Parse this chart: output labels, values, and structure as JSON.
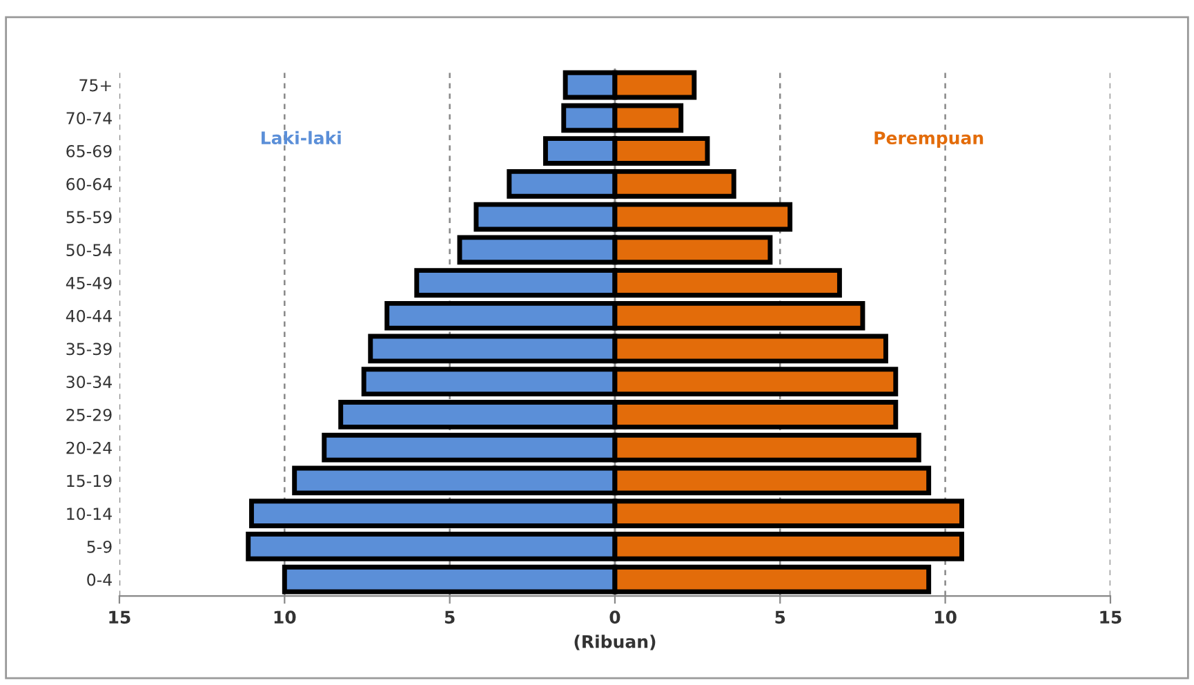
{
  "chart_data": {
    "type": "bar",
    "orientation": "horizontal",
    "xlabel": "(Ribuan)",
    "categories": [
      "75+",
      "70-74",
      "65-69",
      "60-64",
      "55-59",
      "50-54",
      "45-49",
      "40-44",
      "35-39",
      "30-34",
      "25-29",
      "20-24",
      "15-19",
      "10-14",
      "5-9",
      "0-4"
    ],
    "series": [
      {
        "name": "Laki-laki",
        "color": "#5b8fd8",
        "values": [
          -1.5,
          -1.55,
          -2.1,
          -3.2,
          -4.2,
          -4.7,
          -6.0,
          -6.9,
          -7.4,
          -7.6,
          -8.3,
          -8.8,
          -9.7,
          -11.0,
          -11.1,
          -10.0
        ]
      },
      {
        "name": "Perempuan",
        "color": "#e36c0a",
        "values": [
          2.4,
          2.0,
          2.8,
          3.6,
          5.3,
          4.7,
          6.8,
          7.5,
          8.2,
          8.5,
          8.5,
          9.2,
          9.5,
          10.5,
          10.5,
          9.5
        ]
      }
    ],
    "xlim": [
      -15,
      15
    ],
    "xticks": [
      {
        "value": -15,
        "label": "15"
      },
      {
        "value": -10,
        "label": "10"
      },
      {
        "value": -5,
        "label": "5"
      },
      0,
      5,
      10,
      15
    ],
    "grid": "x",
    "legend": false,
    "stacked": true
  }
}
